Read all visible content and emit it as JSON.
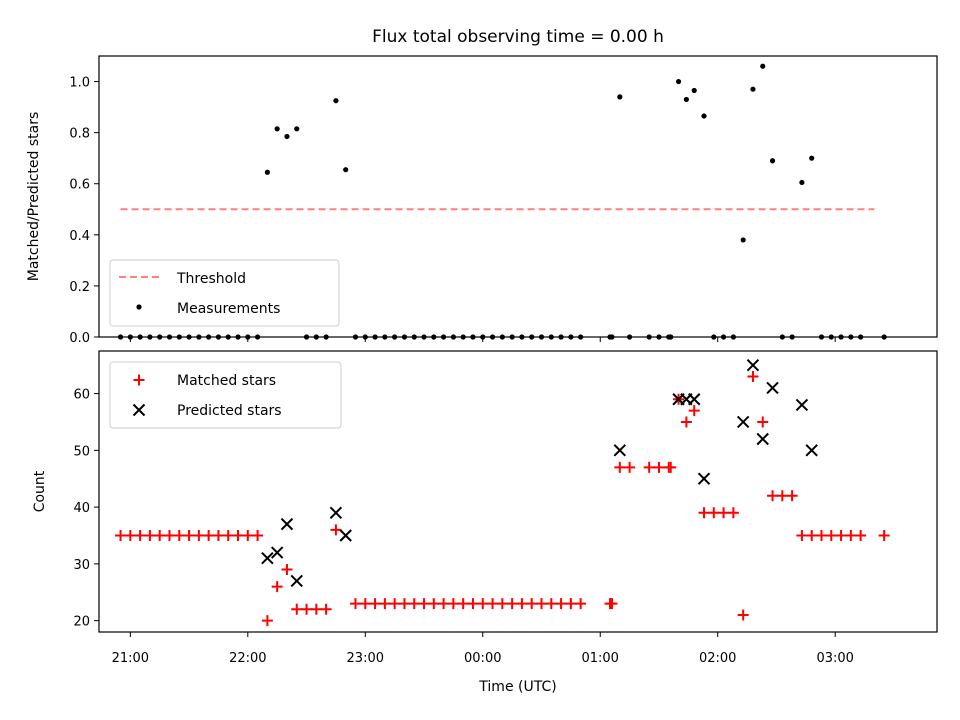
{
  "chart_data": [
    {
      "type": "scatter",
      "title": "Flux total observing time = 0.00 h",
      "xlabel": "",
      "ylabel": "Matched/Predicted stars",
      "ylim": [
        0,
        1.1
      ],
      "xlim": [
        "20:44",
        "03:52"
      ],
      "yticks": [
        "0.0",
        "0.2",
        "0.4",
        "0.6",
        "0.8",
        "1.0"
      ],
      "legend": {
        "placement": "lower-left",
        "entries": [
          "Threshold",
          "Measurements"
        ]
      },
      "threshold": {
        "name": "Threshold",
        "y": 0.5,
        "x_start": "20:55",
        "x_end": "03:20",
        "color": "#ff7f7f",
        "style": "dashed"
      },
      "series": [
        {
          "name": "Measurements",
          "color": "#000000",
          "marker": "dot",
          "points": [
            [
              "20:55",
              0
            ],
            [
              "21:00",
              0
            ],
            [
              "21:05",
              0
            ],
            [
              "21:10",
              0
            ],
            [
              "21:15",
              0
            ],
            [
              "21:20",
              0
            ],
            [
              "21:25",
              0
            ],
            [
              "21:30",
              0
            ],
            [
              "21:35",
              0
            ],
            [
              "21:40",
              0
            ],
            [
              "21:45",
              0
            ],
            [
              "21:50",
              0
            ],
            [
              "21:55",
              0
            ],
            [
              "22:00",
              0
            ],
            [
              "22:05",
              0
            ],
            [
              "22:10",
              0.645
            ],
            [
              "22:15",
              0.815
            ],
            [
              "22:20",
              0.785
            ],
            [
              "22:25",
              0.815
            ],
            [
              "22:30",
              0
            ],
            [
              "22:35",
              0
            ],
            [
              "22:40",
              0
            ],
            [
              "22:45",
              0.925
            ],
            [
              "22:50",
              0.655
            ],
            [
              "22:55",
              0
            ],
            [
              "23:00",
              0
            ],
            [
              "23:05",
              0
            ],
            [
              "23:10",
              0
            ],
            [
              "23:15",
              0
            ],
            [
              "23:20",
              0
            ],
            [
              "23:25",
              0
            ],
            [
              "23:30",
              0
            ],
            [
              "23:35",
              0
            ],
            [
              "23:40",
              0
            ],
            [
              "23:45",
              0
            ],
            [
              "23:50",
              0
            ],
            [
              "23:55",
              0
            ],
            [
              "00:00",
              0
            ],
            [
              "00:05",
              0
            ],
            [
              "00:10",
              0
            ],
            [
              "00:15",
              0
            ],
            [
              "00:20",
              0
            ],
            [
              "00:25",
              0
            ],
            [
              "00:30",
              0
            ],
            [
              "00:35",
              0
            ],
            [
              "00:40",
              0
            ],
            [
              "00:45",
              0
            ],
            [
              "00:50",
              0
            ],
            [
              "01:05",
              0
            ],
            [
              "01:06",
              0
            ],
            [
              "01:10",
              0.94
            ],
            [
              "01:15",
              0
            ],
            [
              "01:25",
              0
            ],
            [
              "01:30",
              0
            ],
            [
              "01:35",
              0
            ],
            [
              "01:36",
              0
            ],
            [
              "01:40",
              1.0
            ],
            [
              "01:44",
              0.93
            ],
            [
              "01:48",
              0.965
            ],
            [
              "01:53",
              0.865
            ],
            [
              "01:58",
              0
            ],
            [
              "02:03",
              0
            ],
            [
              "02:08",
              0
            ],
            [
              "02:13",
              0.38
            ],
            [
              "02:18",
              0.97
            ],
            [
              "02:23",
              1.06
            ],
            [
              "02:28",
              0.69
            ],
            [
              "02:33",
              0
            ],
            [
              "02:38",
              0
            ],
            [
              "02:43",
              0.605
            ],
            [
              "02:48",
              0.7
            ],
            [
              "02:53",
              0
            ],
            [
              "02:58",
              0
            ],
            [
              "03:03",
              0
            ],
            [
              "03:08",
              0
            ],
            [
              "03:13",
              0
            ],
            [
              "03:25",
              0
            ]
          ]
        }
      ]
    },
    {
      "type": "scatter",
      "title": "",
      "xlabel": "Time (UTC)",
      "ylabel": "Count",
      "ylim": [
        18,
        67.5
      ],
      "xlim": [
        "20:44",
        "03:52"
      ],
      "yticks": [
        "20",
        "30",
        "40",
        "50",
        "60"
      ],
      "xticks": [
        "21:00",
        "22:00",
        "23:00",
        "00:00",
        "01:00",
        "02:00",
        "03:00"
      ],
      "legend": {
        "placement": "top-left",
        "entries": [
          "Matched stars",
          "Predicted stars"
        ]
      },
      "series": [
        {
          "name": "Matched stars",
          "color": "#ff0000",
          "marker": "plus",
          "points": [
            [
              "20:55",
              35
            ],
            [
              "21:00",
              35
            ],
            [
              "21:05",
              35
            ],
            [
              "21:10",
              35
            ],
            [
              "21:15",
              35
            ],
            [
              "21:20",
              35
            ],
            [
              "21:25",
              35
            ],
            [
              "21:30",
              35
            ],
            [
              "21:35",
              35
            ],
            [
              "21:40",
              35
            ],
            [
              "21:45",
              35
            ],
            [
              "21:50",
              35
            ],
            [
              "21:55",
              35
            ],
            [
              "22:00",
              35
            ],
            [
              "22:05",
              35
            ],
            [
              "22:10",
              20
            ],
            [
              "22:15",
              26
            ],
            [
              "22:20",
              29
            ],
            [
              "22:25",
              22
            ],
            [
              "22:30",
              22
            ],
            [
              "22:35",
              22
            ],
            [
              "22:40",
              22
            ],
            [
              "22:45",
              36
            ],
            [
              "22:55",
              23
            ],
            [
              "23:00",
              23
            ],
            [
              "23:05",
              23
            ],
            [
              "23:10",
              23
            ],
            [
              "23:15",
              23
            ],
            [
              "23:20",
              23
            ],
            [
              "23:25",
              23
            ],
            [
              "23:30",
              23
            ],
            [
              "23:35",
              23
            ],
            [
              "23:40",
              23
            ],
            [
              "23:45",
              23
            ],
            [
              "23:50",
              23
            ],
            [
              "23:55",
              23
            ],
            [
              "00:00",
              23
            ],
            [
              "00:05",
              23
            ],
            [
              "00:10",
              23
            ],
            [
              "00:15",
              23
            ],
            [
              "00:20",
              23
            ],
            [
              "00:25",
              23
            ],
            [
              "00:30",
              23
            ],
            [
              "00:35",
              23
            ],
            [
              "00:40",
              23
            ],
            [
              "00:45",
              23
            ],
            [
              "00:50",
              23
            ],
            [
              "01:05",
              23
            ],
            [
              "01:06",
              23
            ],
            [
              "01:10",
              47
            ],
            [
              "01:15",
              47
            ],
            [
              "01:25",
              47
            ],
            [
              "01:30",
              47
            ],
            [
              "01:35",
              47
            ],
            [
              "01:36",
              47
            ],
            [
              "01:40",
              59
            ],
            [
              "01:44",
              55
            ],
            [
              "01:48",
              57
            ],
            [
              "01:53",
              39
            ],
            [
              "01:58",
              39
            ],
            [
              "02:03",
              39
            ],
            [
              "02:08",
              39
            ],
            [
              "02:13",
              21
            ],
            [
              "02:18",
              63
            ],
            [
              "02:23",
              55
            ],
            [
              "02:28",
              42
            ],
            [
              "02:33",
              42
            ],
            [
              "02:38",
              42
            ],
            [
              "02:43",
              35
            ],
            [
              "02:48",
              35
            ],
            [
              "02:53",
              35
            ],
            [
              "02:58",
              35
            ],
            [
              "03:03",
              35
            ],
            [
              "03:08",
              35
            ],
            [
              "03:13",
              35
            ],
            [
              "03:25",
              35
            ]
          ]
        },
        {
          "name": "Predicted stars",
          "color": "#000000",
          "marker": "x",
          "points": [
            [
              "22:10",
              31
            ],
            [
              "22:15",
              32
            ],
            [
              "22:20",
              37
            ],
            [
              "22:25",
              27
            ],
            [
              "22:45",
              39
            ],
            [
              "22:50",
              35
            ],
            [
              "01:10",
              50
            ],
            [
              "01:40",
              59
            ],
            [
              "01:44",
              59
            ],
            [
              "01:48",
              59
            ],
            [
              "01:53",
              45
            ],
            [
              "02:13",
              55
            ],
            [
              "02:18",
              65
            ],
            [
              "02:23",
              52
            ],
            [
              "02:28",
              61
            ],
            [
              "02:43",
              58
            ],
            [
              "02:48",
              50
            ]
          ]
        }
      ]
    }
  ]
}
